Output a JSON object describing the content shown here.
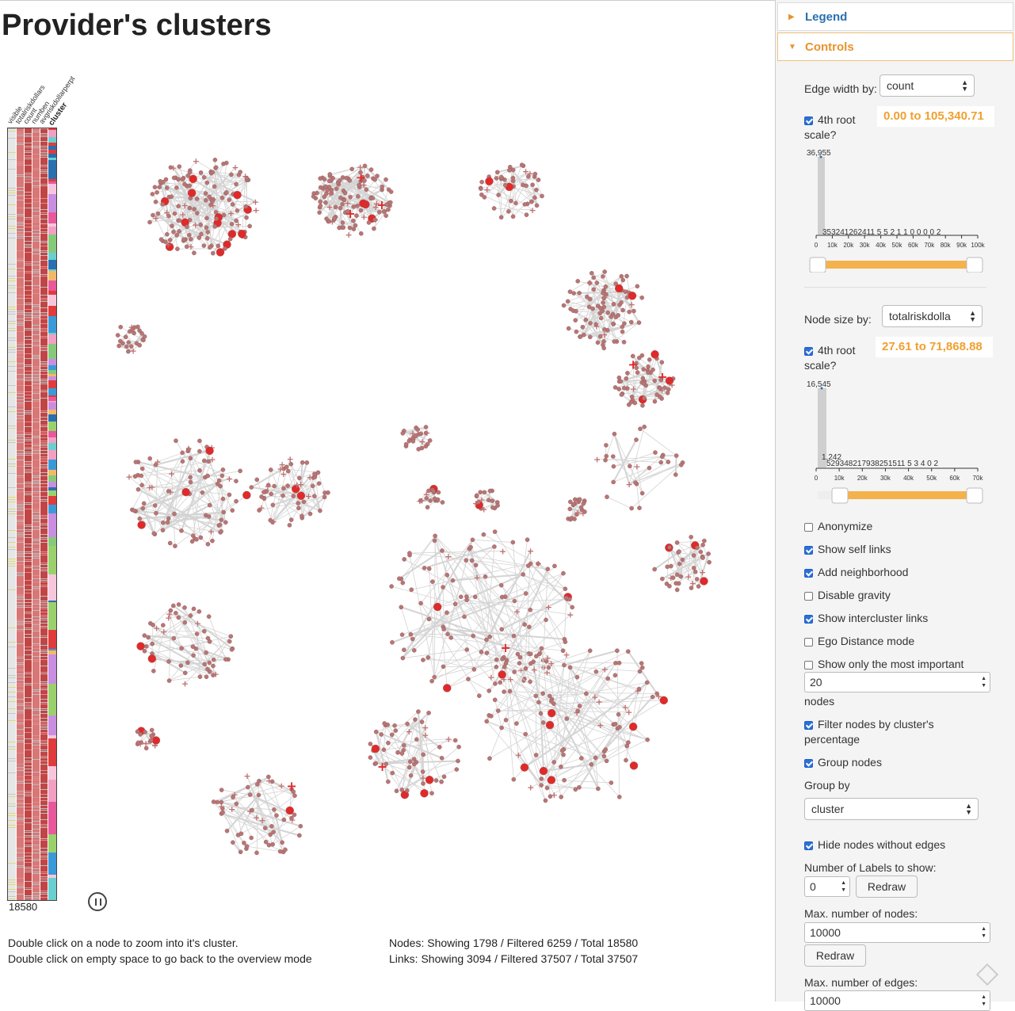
{
  "page_title": "Provider's clusters",
  "summary_columns": [
    "visible",
    "totalriskdollars",
    "count",
    "numben",
    "avgriskdollarperpt",
    "cluster"
  ],
  "summary_count": "18580",
  "help": {
    "line1": "Double click on a node to zoom into it's cluster.",
    "line2": "Double click on empty space to go back to the overview mode"
  },
  "stats": {
    "nodes": "Nodes: Showing 1798 / Filtered 6259 / Total 18580",
    "links": "Links: Showing 3094 / Filtered 37507 / Total 37507"
  },
  "panel": {
    "legend_label": "Legend",
    "controls_label": "Controls",
    "edge_width_label": "Edge width by:",
    "edge_width_value": "count",
    "edge_root_label_1": "4th root",
    "edge_root_label_2": "scale?",
    "edge_range": "0.00 to 105,340.71",
    "edge_hist": {
      "max_label": "36,955",
      "bar_labels": "353241262411 5 5 2 1 1 0 0 0 0 2",
      "ticks": [
        "0",
        "10k",
        "20k",
        "30k",
        "40k",
        "50k",
        "60k",
        "70k",
        "80k",
        "90k",
        "100k"
      ],
      "slider": [
        0.0,
        1.0
      ]
    },
    "node_size_label": "Node size by:",
    "node_size_value": "totalriskdolla",
    "node_root_label_1": "4th root",
    "node_root_label_2": "scale?",
    "node_range": "27.61 to 71,868.88",
    "node_hist": {
      "max_label": "16,545",
      "bar_labels": "1,242",
      "bar_labels2": "529348217938251511 5 3 4 0 2",
      "ticks": [
        "0",
        "10k",
        "20k",
        "30k",
        "40k",
        "50k",
        "60k",
        "70k"
      ],
      "slider": [
        0.1,
        1.0
      ]
    },
    "anonymize": "Anonymize",
    "show_self_links": "Show self links",
    "add_neighborhood": "Add neighborhood",
    "disable_gravity": "Disable gravity",
    "show_intercluster": "Show intercluster links",
    "ego_distance": "Ego Distance mode",
    "show_important": "Show only the most important",
    "important_value": "20",
    "nodes_word": "nodes",
    "filter_pct_1": "Filter nodes by cluster's",
    "filter_pct_2": "percentage",
    "group_nodes": "Group nodes",
    "group_by_label": "Group by",
    "group_by_value": "cluster",
    "hide_without_edges": "Hide nodes without edges",
    "labels_label": "Number of Labels to show:",
    "labels_value": "0",
    "redraw_label": "Redraw",
    "max_nodes_label": "Max. number of nodes:",
    "max_nodes_value": "10000",
    "max_edges_label": "Max. number of edges:",
    "max_edges_value": "10000"
  },
  "checkbox_state": {
    "edge_root": true,
    "node_root": true,
    "anonymize": false,
    "self_links": true,
    "neighborhood": true,
    "gravity": false,
    "intercluster": true,
    "ego": false,
    "important": false,
    "filter_pct": true,
    "group_nodes": true,
    "hide_without_edges": true
  },
  "colors": {
    "accent": "#e8932d",
    "link": "#2a6fb0",
    "node_gray": "#b07878",
    "node_red": "#e02a2a",
    "edge": "#cfcfcf"
  }
}
